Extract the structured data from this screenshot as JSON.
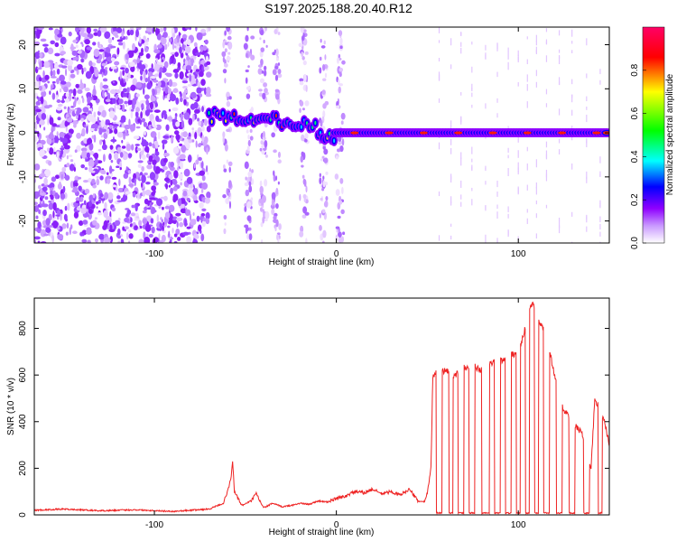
{
  "title": "S197.2025.188.20.40.R12",
  "chart_data": [
    {
      "type": "heatmap",
      "xlabel": "Height of straight line (km)",
      "ylabel": "Frequency (Hz)",
      "xlim": [
        -166,
        150
      ],
      "ylim": [
        -25,
        24
      ],
      "xticks": [
        -100,
        0,
        100
      ],
      "yticks": [
        -20,
        -10,
        0,
        10,
        20
      ],
      "colorbar": {
        "label": "Normalized spectral amplitude",
        "range": [
          0.0,
          1.0
        ],
        "ticks": [
          "0.0",
          "0.2",
          "0.4",
          "0.6",
          "0.8"
        ],
        "colors": [
          "#ffffff",
          "#8f00ff",
          "#0000ff",
          "#00ffff",
          "#00ff00",
          "#ffff00",
          "#ff0000",
          "#ff0066"
        ]
      },
      "features": {
        "noise_region_x": [
          -166,
          -70
        ],
        "track_segments": [
          {
            "x": [
              -70,
              -50
            ],
            "y": [
              2,
              5
            ]
          },
          {
            "x": [
              -50,
              -30
            ],
            "y": [
              2,
              4
            ]
          },
          {
            "x": [
              -30,
              -10
            ],
            "y": [
              1,
              3
            ]
          },
          {
            "x": [
              -10,
              0
            ],
            "y": [
              -2,
              0
            ]
          },
          {
            "x": [
              0,
              150
            ],
            "y": [
              0,
              0
            ]
          }
        ]
      }
    },
    {
      "type": "line",
      "xlabel": "Height of straight line (km)",
      "ylabel": "SNR (10 * v/v)",
      "xlim": [
        -166,
        150
      ],
      "ylim": [
        0,
        930
      ],
      "xticks": [
        -100,
        0,
        100
      ],
      "yticks": [
        0,
        200,
        400,
        600,
        800
      ],
      "color": "#ee2222",
      "x": [
        -166,
        -150,
        -130,
        -110,
        -90,
        -70,
        -62,
        -58,
        -57,
        -56,
        -52,
        -47,
        -44,
        -40,
        -35,
        -30,
        -25,
        -20,
        -15,
        -10,
        -5,
        0,
        5,
        10,
        15,
        20,
        25,
        30,
        35,
        40,
        45,
        48,
        50,
        52,
        53,
        55,
        60,
        65,
        70,
        75,
        80,
        85,
        90,
        95,
        100,
        102,
        105,
        108,
        110,
        115,
        120,
        125,
        130,
        135,
        140,
        142,
        145,
        148,
        150
      ],
      "y": [
        20,
        25,
        18,
        22,
        15,
        25,
        50,
        150,
        230,
        100,
        40,
        60,
        90,
        30,
        50,
        35,
        40,
        50,
        45,
        60,
        55,
        70,
        80,
        100,
        95,
        110,
        90,
        100,
        85,
        110,
        60,
        55,
        90,
        200,
        600,
        610,
        620,
        600,
        630,
        640,
        620,
        650,
        660,
        680,
        700,
        750,
        850,
        920,
        850,
        780,
        600,
        450,
        400,
        350,
        200,
        500,
        450,
        380,
        300
      ],
      "dropouts": [
        [
          55,
          58
        ],
        [
          62,
          64
        ],
        [
          67,
          70
        ],
        [
          73,
          76
        ],
        [
          80,
          84
        ],
        [
          87,
          90
        ],
        [
          93,
          96
        ],
        [
          99,
          101
        ],
        [
          104,
          106
        ],
        [
          109,
          111
        ],
        [
          114,
          117
        ],
        [
          121,
          124
        ],
        [
          128,
          131
        ],
        [
          136,
          139
        ],
        [
          144,
          146
        ]
      ]
    }
  ]
}
